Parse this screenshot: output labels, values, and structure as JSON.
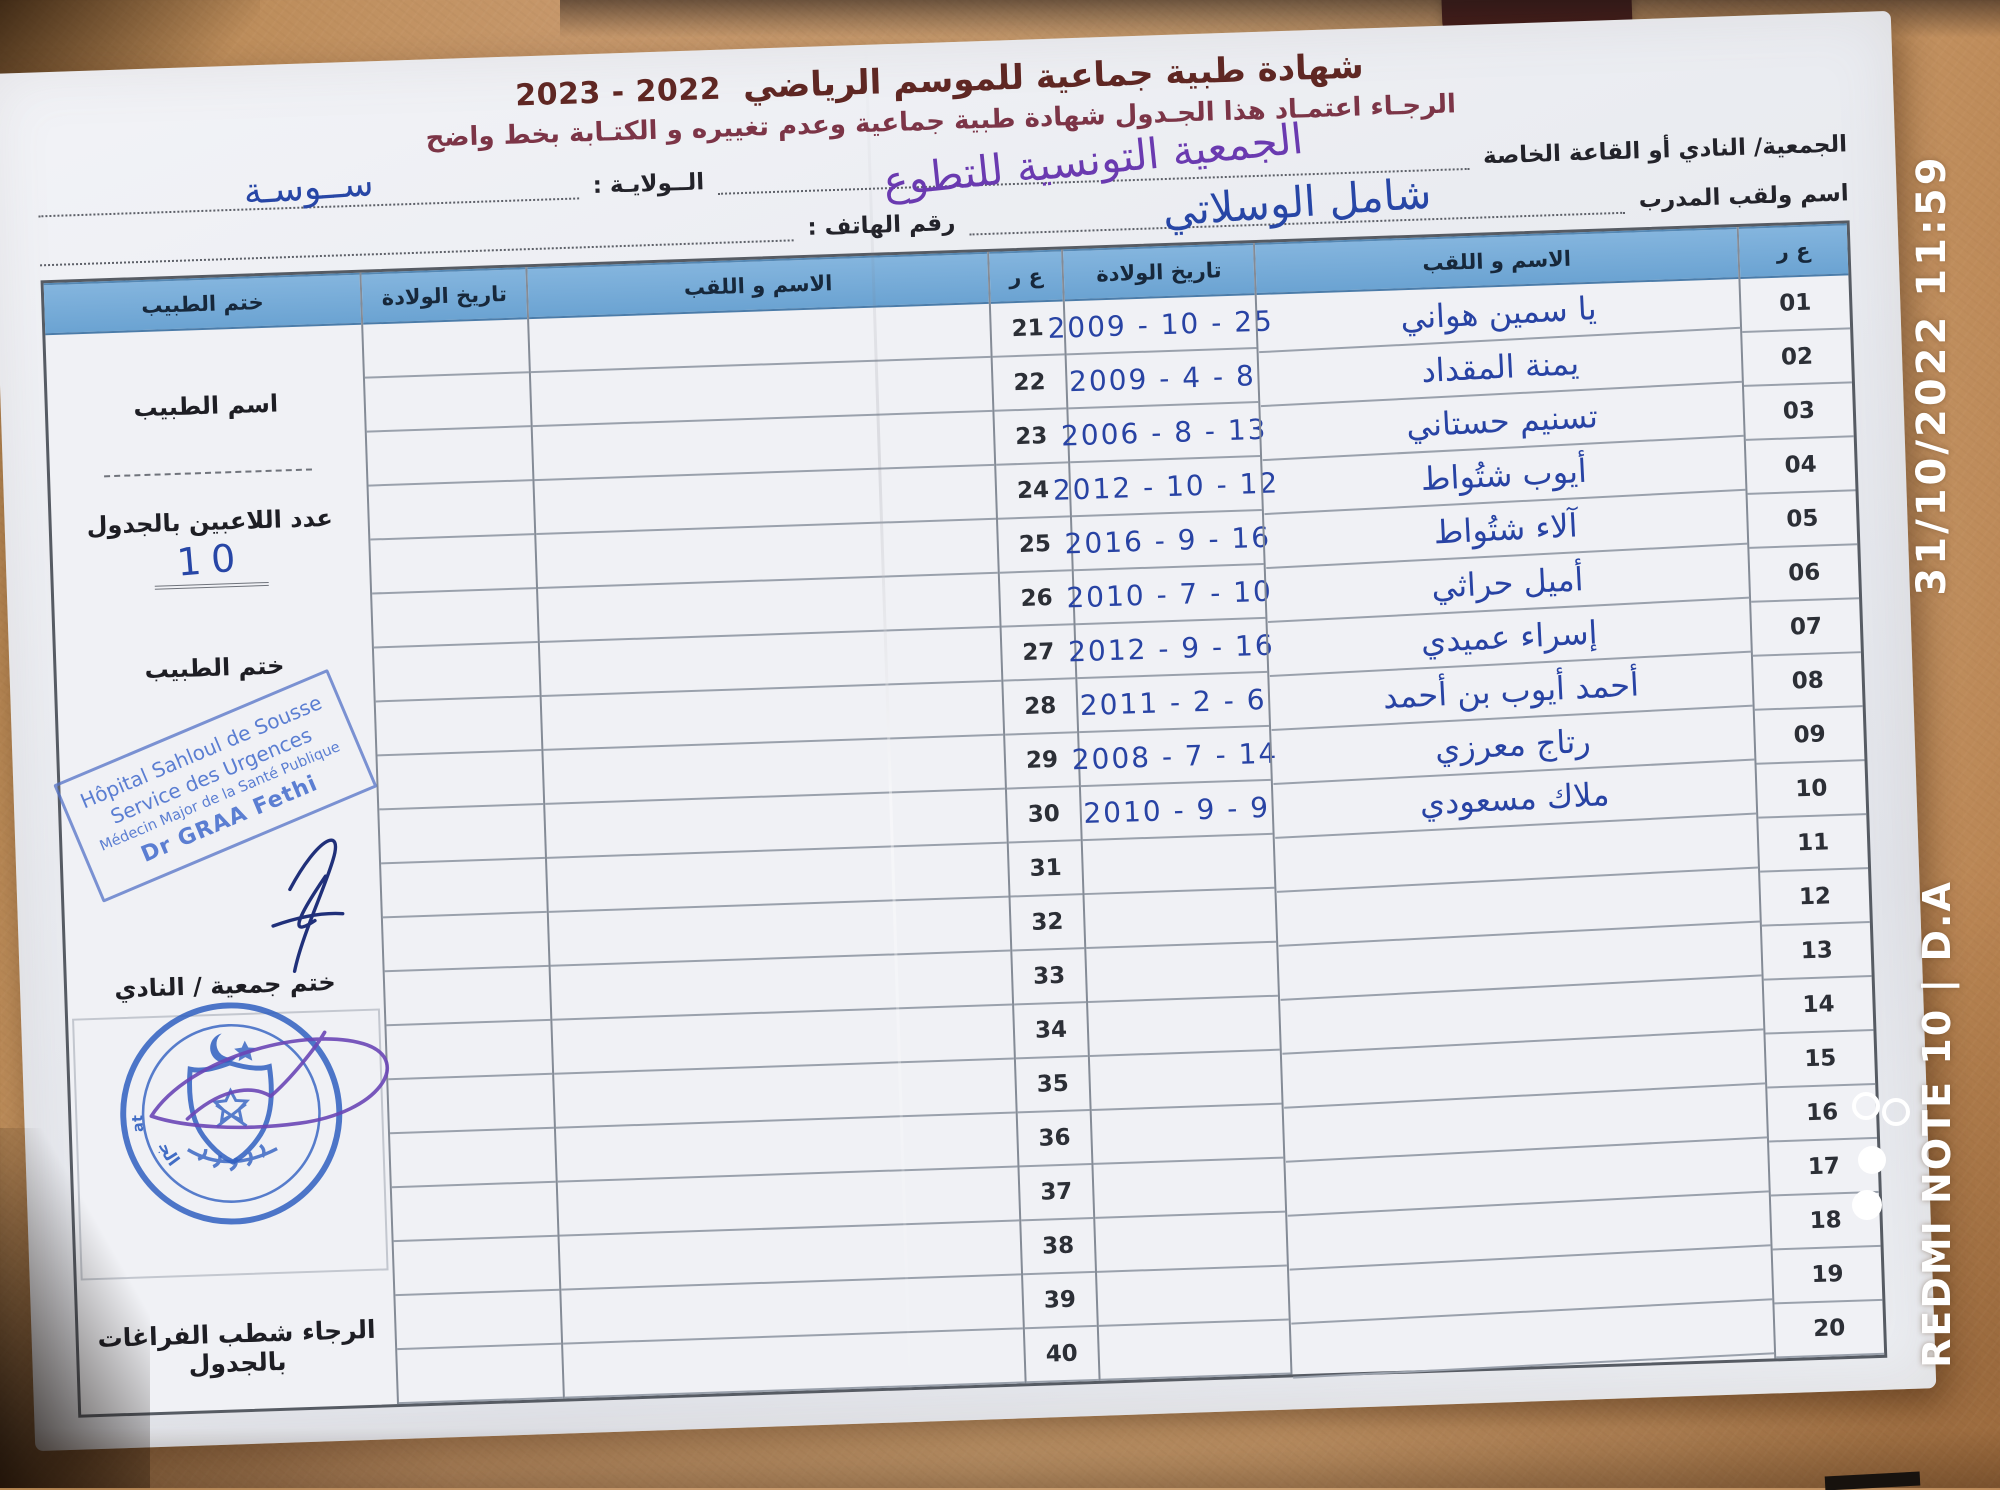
{
  "photo": {
    "watermark_datetime": "31/10/2022  11:59",
    "watermark_device": "REDMI NOTE 10 | D.A"
  },
  "document": {
    "title": "شهادة طبية جماعية  للموسم الرياضي",
    "season": "2023 - 2022",
    "subtitle": "الرجـاء اعتمـاد هذا الجـدول  شهادة طبية جماعية وعدم تغييره و الكتـابة بخط واضح",
    "fields": {
      "association_label": "الجمعية/ النادي أو القاعة الخاصة",
      "association_value": "الجمعية التونسية للتطوع",
      "coach_label": "اسم ولقب المدرب",
      "coach_value": "شامل الوسلاتي",
      "state_label": "الــولايـة :",
      "state_value": "ســوسـة",
      "phone_label": "رقم الهاتف :",
      "phone_value": ""
    },
    "table": {
      "headers": {
        "num": "ع ر",
        "name": "الاسم و اللقب",
        "dob": "تاريخ الولادة",
        "stamp": "ختم الطبيب"
      },
      "rows": [
        {
          "n1": "01",
          "name": "يا سمين هواني",
          "dob": "2009 - 10 - 25",
          "n2": "21"
        },
        {
          "n1": "02",
          "name": "يمنة المقداد",
          "dob": "2009 - 4 - 8",
          "n2": "22"
        },
        {
          "n1": "03",
          "name": "تسنيم حستاني",
          "dob": "2006 - 8 - 13",
          "n2": "23"
        },
        {
          "n1": "04",
          "name": "أيوب شتُواط",
          "dob": "2012 - 10 - 12",
          "n2": "24"
        },
        {
          "n1": "05",
          "name": "آلاء شتُواط",
          "dob": "2016 - 9 - 16",
          "n2": "25"
        },
        {
          "n1": "06",
          "name": "أميل حراثي",
          "dob": "2010 - 7 - 10",
          "n2": "26"
        },
        {
          "n1": "07",
          "name": "إسراء عميدي",
          "dob": "2012 - 9 - 16",
          "n2": "27"
        },
        {
          "n1": "08",
          "name": "أحمد أيوب بن أحمد",
          "dob": "2011 - 2 - 6",
          "n2": "28"
        },
        {
          "n1": "09",
          "name": "رتاج معرزي",
          "dob": "2008 - 7 - 14",
          "n2": "29"
        },
        {
          "n1": "10",
          "name": "ملاك مسعودي",
          "dob": "2010 - 9 - 9",
          "n2": "30"
        },
        {
          "n1": "11",
          "name": "",
          "dob": "",
          "n2": "31"
        },
        {
          "n1": "12",
          "name": "",
          "dob": "",
          "n2": "32"
        },
        {
          "n1": "13",
          "name": "",
          "dob": "",
          "n2": "33"
        },
        {
          "n1": "14",
          "name": "",
          "dob": "",
          "n2": "34"
        },
        {
          "n1": "15",
          "name": "",
          "dob": "",
          "n2": "35"
        },
        {
          "n1": "16",
          "name": "",
          "dob": "",
          "n2": "36"
        },
        {
          "n1": "17",
          "name": "",
          "dob": "",
          "n2": "37"
        },
        {
          "n1": "18",
          "name": "",
          "dob": "",
          "n2": "38"
        },
        {
          "n1": "19",
          "name": "",
          "dob": "",
          "n2": "39"
        },
        {
          "n1": "20",
          "name": "",
          "dob": "",
          "n2": "40"
        }
      ]
    },
    "side_panel": {
      "doctor_name_label": "اسم الطبيب",
      "players_count_label": "عدد اللاعبين بالجدول",
      "players_count_value": "10",
      "doctor_stamp_label": "ختم الطبيب",
      "club_stamp_label": "ختم جمعية / النادي",
      "note": "الرجاء شطب  الفراغات بالجدول"
    },
    "stamps": {
      "hospital_line1": "Hôpital Sahloul de Sousse",
      "hospital_line2": "Service des Urgences",
      "hospital_line3": "Médecin Major de la Santé Publique",
      "hospital_line4": "Dr GRAA Fethi",
      "club_circle_top": "Association Tunisienne Bénévolat",
      "club_circle_bottom": "الجمعية التونسية للتطوع"
    },
    "colors": {
      "table_header_blue": "#74abd6",
      "handwriting_blue": "#2843a4",
      "handwriting_purple": "#6a3ab0",
      "stamp_blue": "#2f5fc0",
      "title_maroon": "#5f2723",
      "background_tan": "#c6976a"
    }
  }
}
